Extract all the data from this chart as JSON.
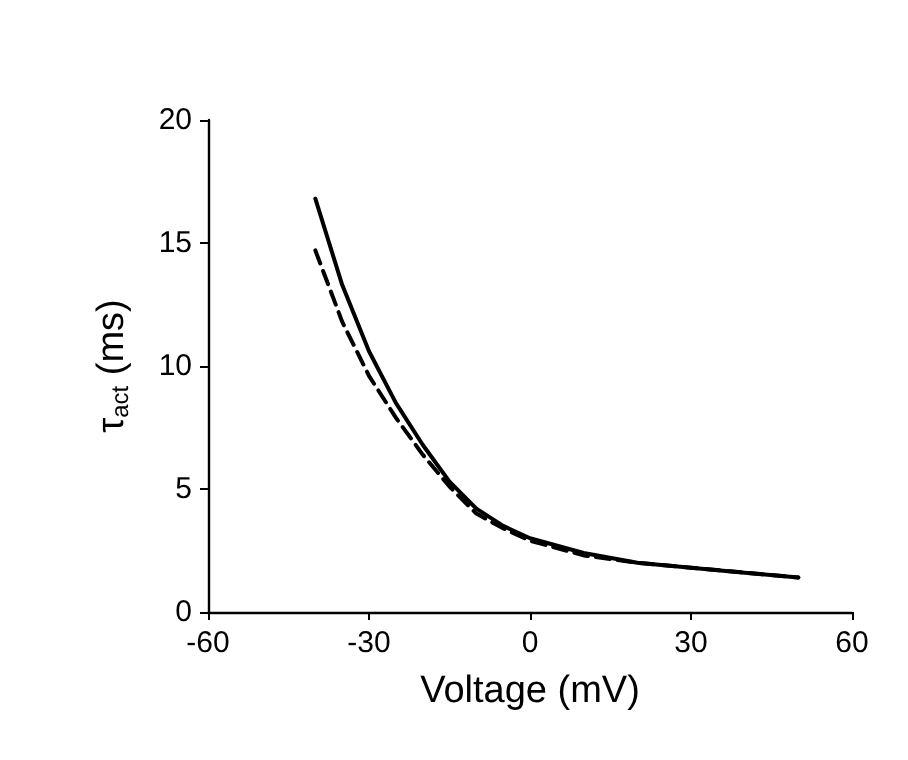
{
  "chart_data": {
    "type": "line",
    "xlabel": "Voltage (mV)",
    "ylabel": "τ$_{act}$ (ms)",
    "xlim": [
      -60,
      60
    ],
    "xticks": [
      -60,
      -30,
      0,
      30,
      60
    ],
    "ylim": [
      0,
      20
    ],
    "yticks": [
      0,
      5,
      10,
      15,
      20
    ],
    "grid": false,
    "marker": "none",
    "series": [
      {
        "color": "#000000",
        "line_style": "solid",
        "x": [
          -40,
          -35,
          -30,
          -25,
          -20,
          -15,
          -10,
          -5,
          0,
          10,
          20,
          30,
          40,
          50
        ],
        "values": [
          16.8,
          13.3,
          10.6,
          8.5,
          6.8,
          5.3,
          4.2,
          3.5,
          3.0,
          2.4,
          2.0,
          1.8,
          1.6,
          1.4
        ]
      },
      {
        "color": "#000000",
        "line_style": "dashed",
        "x": [
          -40,
          -35,
          -30,
          -25,
          -20,
          -15,
          -10,
          -5,
          0,
          10,
          20,
          30,
          40,
          50
        ],
        "values": [
          14.7,
          11.8,
          9.6,
          7.9,
          6.4,
          5.1,
          4.0,
          3.4,
          2.9,
          2.3,
          2.0,
          1.8,
          1.6,
          1.4
        ]
      }
    ]
  }
}
